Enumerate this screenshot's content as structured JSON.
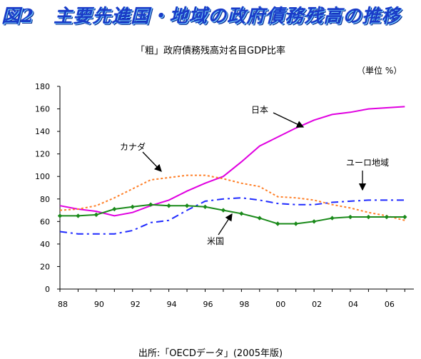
{
  "figure_title": "図2　主要先進国・地域の政府債務残高の推移",
  "source": "出所:「OECDデータ」(2005年版)",
  "chart_data": {
    "type": "line",
    "title": "「粗」政府債務残高対名目GDP比率",
    "unit": "（単位 %）",
    "xlabel": "",
    "ylabel": "",
    "ylim": [
      0,
      180
    ],
    "yticks": [
      "0",
      "20",
      "40",
      "60",
      "80",
      "100",
      "120",
      "140",
      "160",
      "180"
    ],
    "xlim": [
      1988,
      2007.5
    ],
    "xticks": [
      {
        "year": 1988,
        "label": "88"
      },
      {
        "year": 1990,
        "label": "90"
      },
      {
        "year": 1992,
        "label": "92"
      },
      {
        "year": 1994,
        "label": "94"
      },
      {
        "year": 1996,
        "label": "96"
      },
      {
        "year": 1998,
        "label": "98"
      },
      {
        "year": 2000,
        "label": "00"
      },
      {
        "year": 2002,
        "label": "02"
      },
      {
        "year": 2004,
        "label": "04"
      },
      {
        "year": 2006,
        "label": "06"
      }
    ],
    "grid": false,
    "series": [
      {
        "name": "日本",
        "color": "#e000e0",
        "style": "solid",
        "marker": "none",
        "x": [
          1988,
          1989,
          1990,
          1991,
          1992,
          1993,
          1994,
          1995,
          1996,
          1997,
          1998,
          1999,
          2000,
          2001,
          2002,
          2003,
          2004,
          2005,
          2006,
          2007
        ],
        "values": [
          74,
          71,
          69,
          65,
          68,
          74,
          79,
          87,
          94,
          100,
          113,
          127,
          135,
          143,
          150,
          155,
          157,
          160,
          161,
          162
        ]
      },
      {
        "name": "カナダ",
        "color": "#ff7f27",
        "style": "dotted",
        "marker": "none",
        "x": [
          1988,
          1989,
          1990,
          1991,
          1992,
          1993,
          1994,
          1995,
          1996,
          1997,
          1998,
          1999,
          2000,
          2001,
          2002,
          2003,
          2004,
          2005,
          2006,
          2007
        ],
        "values": [
          70,
          71,
          74,
          81,
          89,
          97,
          99,
          101,
          101,
          98,
          94,
          91,
          82,
          81,
          79,
          75,
          72,
          68,
          65,
          61
        ]
      },
      {
        "name": "ユーロ地域",
        "color": "#1f2aff",
        "style": "dashdot",
        "marker": "none",
        "x": [
          1988,
          1989,
          1990,
          1991,
          1992,
          1993,
          1994,
          1995,
          1996,
          1997,
          1998,
          1999,
          2000,
          2001,
          2002,
          2003,
          2004,
          2005,
          2006,
          2007
        ],
        "values": [
          51,
          49,
          49,
          49,
          52,
          59,
          61,
          70,
          78,
          80,
          81,
          79,
          76,
          75,
          75,
          77,
          78,
          79,
          79,
          79
        ]
      },
      {
        "name": "米国",
        "color": "#1a8a1a",
        "style": "solid",
        "marker": "diamond",
        "x": [
          1988,
          1989,
          1990,
          1991,
          1992,
          1993,
          1994,
          1995,
          1996,
          1997,
          1998,
          1999,
          2000,
          2001,
          2002,
          2003,
          2004,
          2005,
          2006,
          2007
        ],
        "values": [
          65,
          65,
          66,
          71,
          73,
          75,
          74,
          74,
          73,
          70,
          67,
          63,
          58,
          58,
          60,
          63,
          64,
          64,
          64,
          64
        ]
      }
    ],
    "annotations": [
      {
        "text": "日本",
        "series": "日本",
        "arrow": true
      },
      {
        "text": "カナダ",
        "series": "カナダ",
        "arrow": true
      },
      {
        "text": "ユーロ地域",
        "series": "ユーロ地域",
        "arrow": true
      },
      {
        "text": "米国",
        "series": "米国",
        "arrow": true
      }
    ]
  }
}
